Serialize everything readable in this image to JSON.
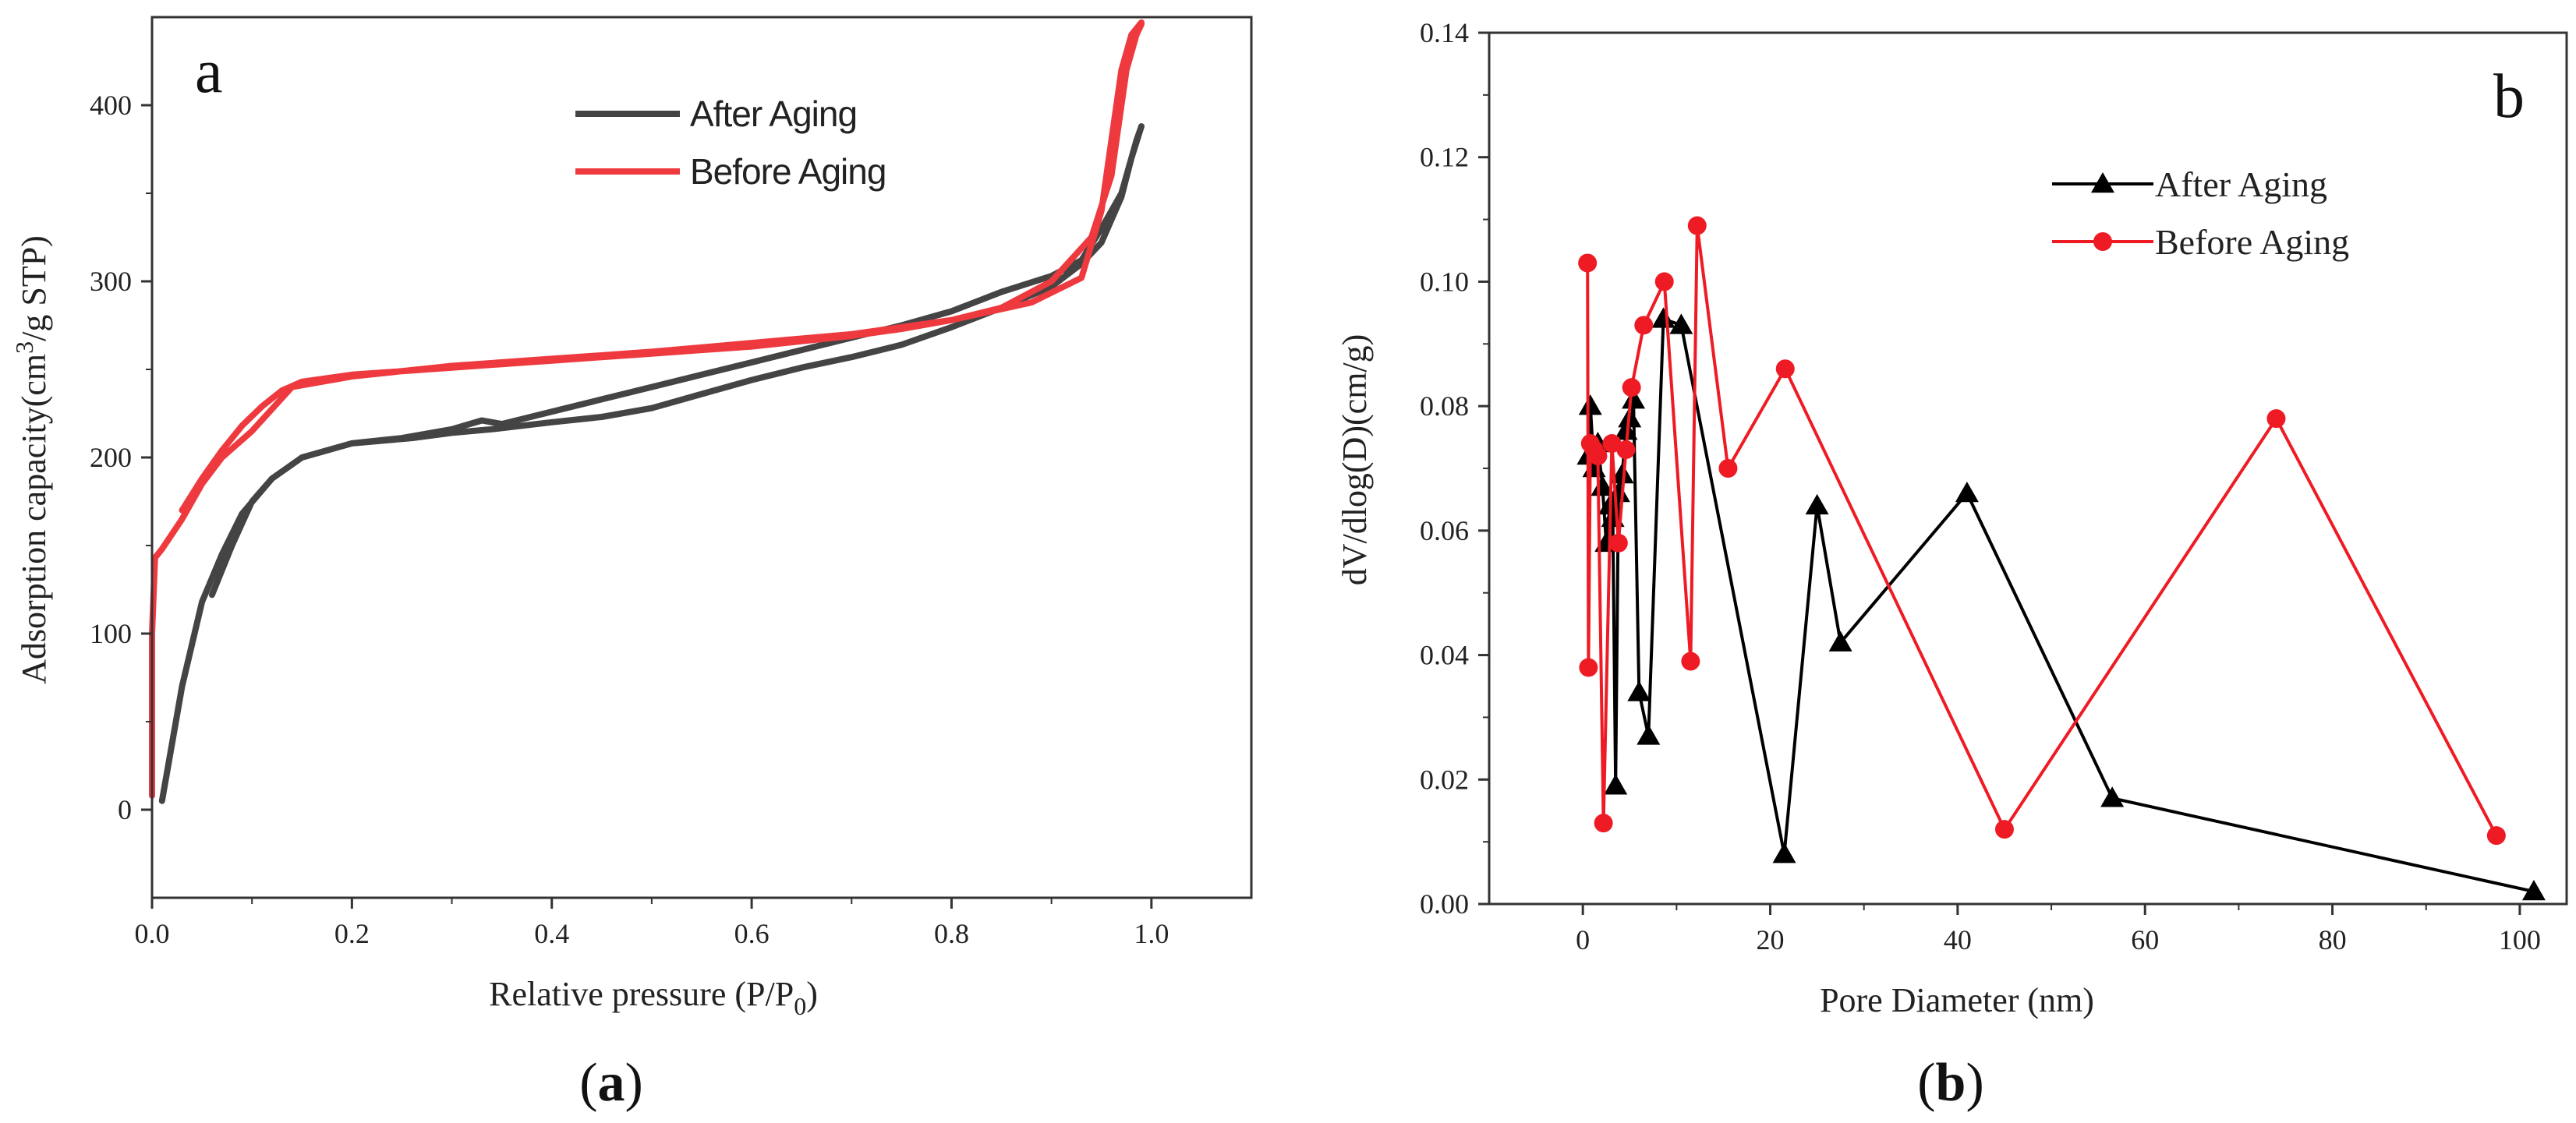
{
  "chart_data": [
    {
      "type": "line",
      "panel_label": "a",
      "caption_open": "(",
      "caption_letter": "a",
      "caption_close": ")",
      "title": "",
      "xlabel_main": "Relative pressure (P/P",
      "xlabel_sub": "0",
      "xlabel_close": ")",
      "ylabel_pre": "Adsorption capacity(cm",
      "ylabel_sup": "3",
      "ylabel_post": "/g STP)",
      "xlim": [
        0,
        1.1
      ],
      "ylim": [
        -50,
        450
      ],
      "xticks": [
        0.0,
        0.2,
        0.4,
        0.6,
        0.8,
        1.0
      ],
      "xtick_labels": [
        "0.0",
        "0.2",
        "0.4",
        "0.6",
        "0.8",
        "1.0"
      ],
      "yticks": [
        0,
        100,
        200,
        300,
        400
      ],
      "ytick_labels": [
        "0",
        "100",
        "200",
        "300",
        "400"
      ],
      "legend_position": "top-center",
      "series": [
        {
          "name": "After Aging",
          "color": "#444444",
          "x": [
            0.01,
            0.03,
            0.05,
            0.07,
            0.09,
            0.12,
            0.15,
            0.2,
            0.26,
            0.3,
            0.34,
            0.4,
            0.45,
            0.5,
            0.55,
            0.6,
            0.65,
            0.7,
            0.75,
            0.8,
            0.85,
            0.9,
            0.93,
            0.95,
            0.97,
            0.98,
            0.99,
            0.985,
            0.97,
            0.95,
            0.93,
            0.9,
            0.85,
            0.8,
            0.75,
            0.7,
            0.65,
            0.6,
            0.55,
            0.5,
            0.45,
            0.4,
            0.35,
            0.33,
            0.3,
            0.25,
            0.2,
            0.15,
            0.12,
            0.1,
            0.08,
            0.06
          ],
          "y": [
            5,
            70,
            118,
            145,
            168,
            188,
            200,
            208,
            211,
            214,
            216,
            220,
            223,
            228,
            236,
            244,
            251,
            257,
            264,
            274,
            285,
            297,
            310,
            322,
            348,
            370,
            388,
            380,
            350,
            330,
            312,
            303,
            294,
            283,
            275,
            268,
            261,
            254,
            247,
            240,
            233,
            226,
            219,
            221,
            216,
            211,
            208,
            200,
            188,
            175,
            150,
            122
          ]
        },
        {
          "name": "Before Aging",
          "color": "#EE3A3F",
          "x": [
            0.0,
            0.0,
            0.003,
            0.01,
            0.03,
            0.05,
            0.07,
            0.1,
            0.14,
            0.2,
            0.3,
            0.4,
            0.5,
            0.6,
            0.7,
            0.8,
            0.88,
            0.93,
            0.95,
            0.96,
            0.97,
            0.98,
            0.99,
            0.99,
            0.985,
            0.975,
            0.96,
            0.94,
            0.9,
            0.85,
            0.8,
            0.75,
            0.7,
            0.65,
            0.6,
            0.55,
            0.5,
            0.45,
            0.4,
            0.35,
            0.3,
            0.25,
            0.2,
            0.15,
            0.13,
            0.11,
            0.09,
            0.07,
            0.05,
            0.03
          ],
          "y": [
            8,
            100,
            143,
            148,
            165,
            185,
            200,
            215,
            240,
            246,
            252,
            256,
            260,
            265,
            270,
            278,
            288,
            302,
            340,
            380,
            420,
            440,
            447,
            446,
            440,
            420,
            360,
            325,
            300,
            285,
            278,
            273,
            269,
            266,
            263,
            261,
            259,
            257,
            255,
            253,
            251,
            249,
            247,
            243,
            238,
            229,
            218,
            204,
            188,
            170
          ]
        }
      ]
    },
    {
      "type": "line",
      "panel_label": "b",
      "caption_open": "(",
      "caption_letter": "b",
      "caption_close": ")",
      "title": "",
      "xlabel": "Pore Diameter (nm)",
      "ylabel": "dV/dlog(D)(cm/g)",
      "xlim": [
        -10,
        105
      ],
      "ylim": [
        0,
        0.14
      ],
      "xticks": [
        0,
        20,
        40,
        60,
        80,
        100
      ],
      "xtick_labels": [
        "0",
        "20",
        "40",
        "60",
        "80",
        "100"
      ],
      "yticks": [
        0.0,
        0.02,
        0.04,
        0.06,
        0.08,
        0.1,
        0.12,
        0.14
      ],
      "ytick_labels": [
        "0.00",
        "0.02",
        "0.04",
        "0.06",
        "0.08",
        "0.10",
        "0.12",
        "0.14"
      ],
      "legend_position": "top-right",
      "series": [
        {
          "name": "After Aging",
          "color": "#000000",
          "marker": "triangle",
          "x": [
            0.6,
            0.8,
            1.2,
            1.6,
            2.1,
            2.5,
            2.9,
            3.2,
            3.5,
            3.8,
            4.2,
            4.6,
            5.0,
            5.4,
            6.0,
            7.0,
            8.6,
            10.5,
            21.5,
            25.0,
            27.5,
            41.0,
            56.5,
            101.5
          ],
          "y": [
            0.072,
            0.08,
            0.07,
            0.074,
            0.067,
            0.058,
            0.064,
            0.062,
            0.019,
            0.066,
            0.069,
            0.076,
            0.078,
            0.081,
            0.034,
            0.027,
            0.094,
            0.093,
            0.008,
            0.064,
            0.042,
            0.066,
            0.017,
            0.002
          ]
        },
        {
          "name": "Before Aging",
          "color": "#EE1B24",
          "marker": "circle",
          "x": [
            0.5,
            0.6,
            0.8,
            1.2,
            1.6,
            2.2,
            3.1,
            3.8,
            4.6,
            5.2,
            6.5,
            8.7,
            11.5,
            12.2,
            15.5,
            21.6,
            45.0,
            74.0,
            97.5
          ],
          "y": [
            0.103,
            0.038,
            0.074,
            0.073,
            0.072,
            0.013,
            0.074,
            0.058,
            0.073,
            0.083,
            0.093,
            0.1,
            0.039,
            0.109,
            0.07,
            0.086,
            0.012,
            0.078,
            0.011
          ]
        }
      ]
    }
  ]
}
